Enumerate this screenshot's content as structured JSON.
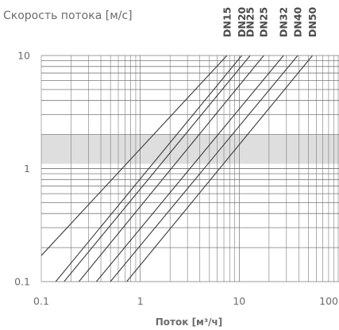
{
  "chart_data": {
    "type": "line",
    "ylabel": "Скорость потока [м/с]",
    "xlabel": "Поток [м³/ч]",
    "x_scale": "log",
    "y_scale": "log",
    "xlim": [
      0.1,
      100
    ],
    "ylim": [
      0.1,
      10
    ],
    "x_ticks": [
      {
        "value": 0.1,
        "label": "0.1"
      },
      {
        "value": 1,
        "label": "1"
      },
      {
        "value": 10,
        "label": "10"
      },
      {
        "value": 100,
        "label": "100"
      }
    ],
    "y_ticks": [
      {
        "value": 0.1,
        "label": "0.1"
      },
      {
        "value": 1,
        "label": "1"
      },
      {
        "value": 10,
        "label": "10"
      }
    ],
    "grid": true,
    "recommended_band": {
      "y_min": 1.1,
      "y_max": 2.0,
      "color": "#dedede"
    },
    "line_color": "#3a3a3a",
    "grid_color": "#7a7a7a",
    "series": [
      {
        "name": "DN15",
        "x": [
          0.1,
          7.5
        ],
        "y": [
          0.17,
          10
        ]
      },
      {
        "name": "DN20",
        "x": [
          0.14,
          10.6
        ],
        "y": [
          0.1,
          10
        ]
      },
      {
        "name": "DN25",
        "x": [
          0.17,
          12.9
        ],
        "y": [
          0.1,
          10
        ]
      },
      {
        "name": "DN25",
        "x": [
          0.24,
          17.7
        ],
        "y": [
          0.1,
          10
        ]
      },
      {
        "name": "DN32",
        "x": [
          0.36,
          28
        ],
        "y": [
          0.1,
          10
        ]
      },
      {
        "name": "DN40",
        "x": [
          0.5,
          39
        ],
        "y": [
          0.1,
          10
        ]
      },
      {
        "name": "DN50",
        "x": [
          0.73,
          55
        ],
        "y": [
          0.1,
          10
        ]
      }
    ]
  }
}
